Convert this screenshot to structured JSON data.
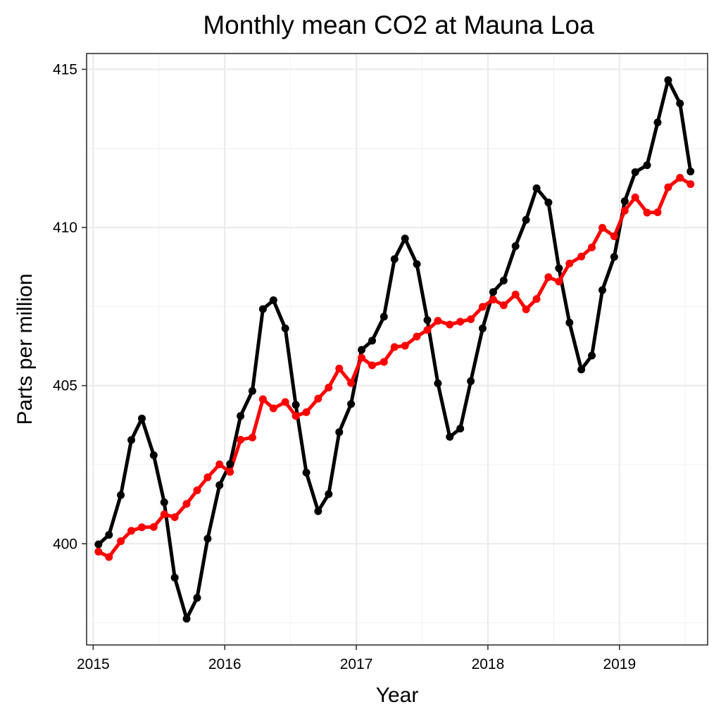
{
  "chart_data": {
    "type": "line",
    "title": "Monthly mean CO2 at Mauna Loa",
    "xlabel": "Year",
    "ylabel": "Parts per million",
    "xlim": [
      2014.95,
      2019.67
    ],
    "ylim": [
      396.8,
      415.5
    ],
    "x_ticks": [
      {
        "value": 2015,
        "label": "2015"
      },
      {
        "value": 2016,
        "label": "2016"
      },
      {
        "value": 2017,
        "label": "2017"
      },
      {
        "value": 2018,
        "label": "2018"
      },
      {
        "value": 2019,
        "label": "2019"
      }
    ],
    "y_ticks": [
      {
        "value": 400,
        "label": "400"
      },
      {
        "value": 405,
        "label": "405"
      },
      {
        "value": 410,
        "label": "410"
      },
      {
        "value": 415,
        "label": "415"
      }
    ],
    "grid": true,
    "x": [
      2015.04,
      2015.12,
      2015.21,
      2015.29,
      2015.37,
      2015.46,
      2015.54,
      2015.62,
      2015.71,
      2015.79,
      2015.87,
      2015.96,
      2016.04,
      2016.12,
      2016.21,
      2016.29,
      2016.37,
      2016.46,
      2016.54,
      2016.62,
      2016.71,
      2016.79,
      2016.87,
      2016.96,
      2017.04,
      2017.12,
      2017.21,
      2017.29,
      2017.37,
      2017.46,
      2017.54,
      2017.62,
      2017.71,
      2017.79,
      2017.87,
      2017.96,
      2018.04,
      2018.12,
      2018.21,
      2018.29,
      2018.37,
      2018.46,
      2018.54,
      2018.62,
      2018.71,
      2018.79,
      2018.87,
      2018.96,
      2019.04,
      2019.12,
      2019.21,
      2019.29,
      2019.37,
      2019.46,
      2019.54
    ],
    "series": [
      {
        "color": "#000000",
        "values": [
          399.98,
          400.28,
          401.54,
          403.28,
          403.96,
          402.8,
          401.31,
          398.93,
          397.63,
          398.29,
          400.16,
          401.85,
          402.52,
          404.04,
          404.83,
          407.42,
          407.7,
          406.81,
          404.39,
          402.25,
          401.03,
          401.57,
          403.53,
          404.42,
          406.13,
          406.42,
          407.18,
          409.0,
          409.65,
          408.84,
          407.07,
          405.07,
          403.38,
          403.64,
          405.14,
          406.81,
          407.96,
          408.32,
          409.41,
          410.24,
          411.24,
          410.79,
          408.71,
          406.99,
          405.51,
          405.95,
          408.02,
          409.07,
          410.83,
          411.75,
          411.97,
          413.32,
          414.66,
          413.92,
          411.77
        ]
      },
      {
        "color": "#ff0000",
        "values": [
          399.75,
          399.58,
          400.08,
          400.41,
          400.52,
          400.53,
          400.93,
          400.84,
          401.26,
          401.69,
          402.1,
          402.51,
          402.27,
          403.29,
          403.36,
          404.57,
          404.28,
          404.48,
          404.04,
          404.16,
          404.59,
          404.94,
          405.54,
          405.08,
          405.88,
          405.64,
          405.75,
          406.22,
          406.26,
          406.55,
          406.76,
          407.05,
          406.93,
          407.02,
          407.1,
          407.49,
          407.72,
          407.54,
          407.88,
          407.41,
          407.74,
          408.43,
          408.29,
          408.86,
          409.08,
          409.37,
          409.99,
          409.72,
          410.53,
          410.95,
          410.47,
          410.48,
          411.27,
          411.57,
          411.37
        ]
      }
    ]
  }
}
